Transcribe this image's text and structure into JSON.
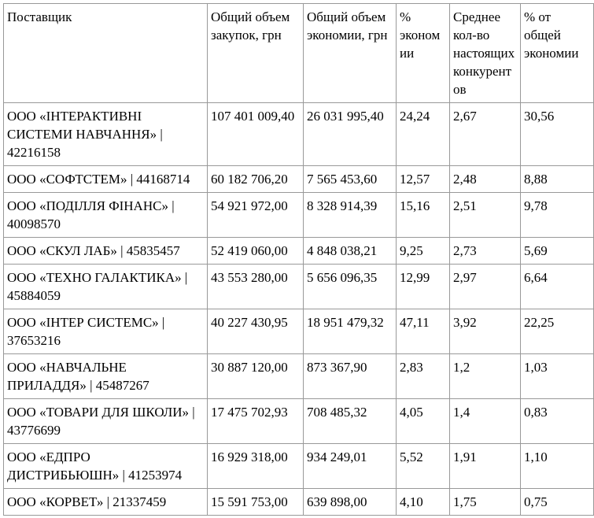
{
  "table": {
    "columns": [
      {
        "key": "supplier",
        "label": "Поставщик"
      },
      {
        "key": "total_purchases_uah",
        "label": "Общий объем закупок, грн"
      },
      {
        "key": "total_savings_uah",
        "label": "Общий объем экономии, грн"
      },
      {
        "key": "savings_percent",
        "label": "% экономии"
      },
      {
        "key": "avg_real_competitors",
        "label": "Среднее кол-во настоящих конкурентов"
      },
      {
        "key": "percent_of_total_savings",
        "label": "% от общей экономии"
      }
    ],
    "rows": [
      {
        "supplier": "ООО «ІНТЕРАКТИВНІ СИСТЕМИ НАВЧАННЯ» | 42216158",
        "total_purchases_uah": "107 401 009,40",
        "total_savings_uah": "26 031 995,40",
        "savings_percent": "24,24",
        "avg_real_competitors": "2,67",
        "percent_of_total_savings": "30,56"
      },
      {
        "supplier": "ООО «СОФТСТЕМ» | 44168714",
        "total_purchases_uah": "60 182 706,20",
        "total_savings_uah": "7 565 453,60",
        "savings_percent": "12,57",
        "avg_real_competitors": "2,48",
        "percent_of_total_savings": "8,88"
      },
      {
        "supplier": "ООО «ПОДІЛЛЯ ФІНАНС» | 40098570",
        "total_purchases_uah": "54 921 972,00",
        "total_savings_uah": "8 328 914,39",
        "savings_percent": "15,16",
        "avg_real_competitors": "2,51",
        "percent_of_total_savings": "9,78"
      },
      {
        "supplier": "ООО «СКУЛ ЛАБ» | 45835457",
        "total_purchases_uah": "52 419 060,00",
        "total_savings_uah": "4 848 038,21",
        "savings_percent": "9,25",
        "avg_real_competitors": "2,73",
        "percent_of_total_savings": "5,69"
      },
      {
        "supplier": "ООО «ТЕХНО ГАЛАКТИКА» | 45884059",
        "total_purchases_uah": "43 553 280,00",
        "total_savings_uah": "5 656 096,35",
        "savings_percent": "12,99",
        "avg_real_competitors": "2,97",
        "percent_of_total_savings": "6,64"
      },
      {
        "supplier": "ООО «ІНТЕР СИСТЕМС» | 37653216",
        "total_purchases_uah": "40 227 430,95",
        "total_savings_uah": "18 951 479,32",
        "savings_percent": "47,11",
        "avg_real_competitors": "3,92",
        "percent_of_total_savings": "22,25"
      },
      {
        "supplier": "ООО «НАВЧАЛЬНЕ ПРИЛАДДЯ» | 45487267",
        "total_purchases_uah": "30 887 120,00",
        "total_savings_uah": "873 367,90",
        "savings_percent": "2,83",
        "avg_real_competitors": "1,2",
        "percent_of_total_savings": "1,03"
      },
      {
        "supplier": "ООО «ТОВАРИ ДЛЯ ШКОЛИ» | 43776699",
        "total_purchases_uah": "17 475 702,93",
        "total_savings_uah": "708 485,32",
        "savings_percent": "4,05",
        "avg_real_competitors": "1,4",
        "percent_of_total_savings": "0,83"
      },
      {
        "supplier": "ООО «ЕДПРО ДИСТРИБЬЮШН» | 41253974",
        "total_purchases_uah": "16 929 318,00",
        "total_savings_uah": "934 249,01",
        "savings_percent": "5,52",
        "avg_real_competitors": "1,91",
        "percent_of_total_savings": "1,10"
      },
      {
        "supplier": "ООО «КОРВЕТ» | 21337459",
        "total_purchases_uah": "15 591 753,00",
        "total_savings_uah": "639 898,00",
        "savings_percent": "4,10",
        "avg_real_competitors": "1,75",
        "percent_of_total_savings": "0,75"
      }
    ]
  }
}
